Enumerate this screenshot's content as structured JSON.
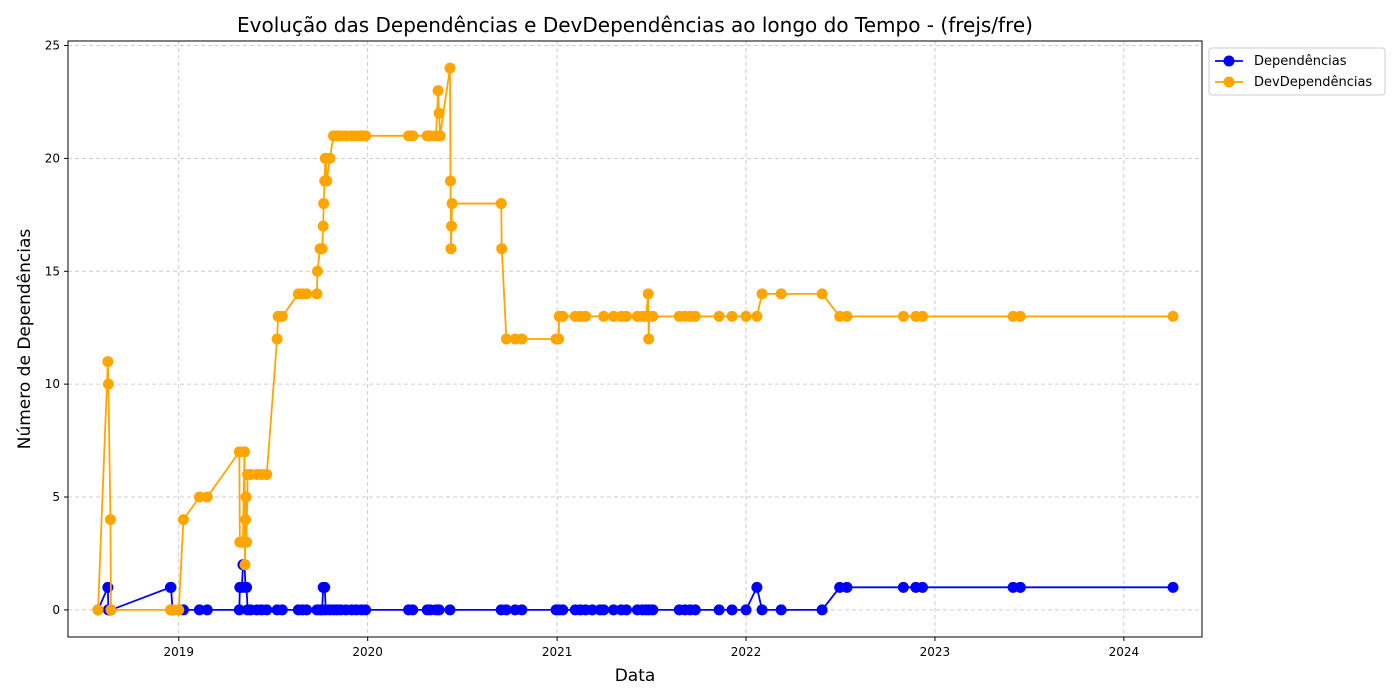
{
  "chart_data": {
    "type": "line",
    "title": "Evolução das Dependências e DevDependências ao longo do Tempo - (frejs/fre)",
    "xlabel": "Data",
    "ylabel": "Número de Dependências",
    "x_ticks": [
      "2019",
      "2020",
      "2021",
      "2022",
      "2023",
      "2024"
    ],
    "y_ticks": [
      "0",
      "5",
      "10",
      "15",
      "20",
      "25"
    ],
    "xlim": [
      "2018-06-01",
      "2024-05-31"
    ],
    "ylim": [
      -1.2,
      25.2
    ],
    "grid": true,
    "legend_position": "outside-top-right",
    "series": [
      {
        "name": "Dependências",
        "color": "#0000ff",
        "points": [
          [
            "2018-07-29",
            0
          ],
          [
            "2018-08-17",
            1
          ],
          [
            "2018-08-18",
            0
          ],
          [
            "2018-08-22",
            0
          ],
          [
            "2018-08-23",
            0
          ],
          [
            "2018-12-16",
            1
          ],
          [
            "2018-12-17",
            1
          ],
          [
            "2018-12-20",
            0
          ],
          [
            "2019-01-01",
            0
          ],
          [
            "2019-01-10",
            0
          ],
          [
            "2019-02-10",
            0
          ],
          [
            "2019-02-25",
            0
          ],
          [
            "2019-04-28",
            0
          ],
          [
            "2019-04-29",
            1
          ],
          [
            "2019-05-03",
            1
          ],
          [
            "2019-05-05",
            2
          ],
          [
            "2019-05-08",
            2
          ],
          [
            "2019-05-10",
            1
          ],
          [
            "2019-05-12",
            1
          ],
          [
            "2019-05-14",
            0
          ],
          [
            "2019-05-20",
            0
          ],
          [
            "2019-06-01",
            0
          ],
          [
            "2019-06-10",
            0
          ],
          [
            "2019-06-20",
            0
          ],
          [
            "2019-07-10",
            0
          ],
          [
            "2019-07-20",
            0
          ],
          [
            "2019-08-20",
            0
          ],
          [
            "2019-08-28",
            0
          ],
          [
            "2019-09-05",
            0
          ],
          [
            "2019-09-25",
            0
          ],
          [
            "2019-10-01",
            0
          ],
          [
            "2019-10-05",
            0
          ],
          [
            "2019-10-07",
            1
          ],
          [
            "2019-10-10",
            1
          ],
          [
            "2019-10-12",
            0
          ],
          [
            "2019-10-20",
            0
          ],
          [
            "2019-10-27",
            0
          ],
          [
            "2019-11-03",
            0
          ],
          [
            "2019-11-10",
            0
          ],
          [
            "2019-11-20",
            0
          ],
          [
            "2019-12-01",
            0
          ],
          [
            "2019-12-10",
            0
          ],
          [
            "2019-12-20",
            0
          ],
          [
            "2019-12-28",
            0
          ],
          [
            "2020-03-20",
            0
          ],
          [
            "2020-03-28",
            0
          ],
          [
            "2020-04-25",
            0
          ],
          [
            "2020-05-01",
            0
          ],
          [
            "2020-05-12",
            0
          ],
          [
            "2020-05-18",
            0
          ],
          [
            "2020-06-08",
            0
          ],
          [
            "2020-09-15",
            0
          ],
          [
            "2020-09-25",
            0
          ],
          [
            "2020-10-12",
            0
          ],
          [
            "2020-10-25",
            0
          ],
          [
            "2020-12-30",
            0
          ],
          [
            "2021-01-05",
            0
          ],
          [
            "2021-01-12",
            0
          ],
          [
            "2021-02-05",
            0
          ],
          [
            "2021-02-15",
            0
          ],
          [
            "2021-02-25",
            0
          ],
          [
            "2021-03-10",
            0
          ],
          [
            "2021-03-25",
            0
          ],
          [
            "2021-04-01",
            0
          ],
          [
            "2021-04-20",
            0
          ],
          [
            "2021-05-05",
            0
          ],
          [
            "2021-05-15",
            0
          ],
          [
            "2021-06-05",
            0
          ],
          [
            "2021-06-15",
            0
          ],
          [
            "2021-06-22",
            0
          ],
          [
            "2021-06-28",
            0
          ],
          [
            "2021-07-05",
            0
          ],
          [
            "2021-08-25",
            0
          ],
          [
            "2021-09-05",
            0
          ],
          [
            "2021-09-15",
            0
          ],
          [
            "2021-09-25",
            0
          ],
          [
            "2021-11-10",
            0
          ],
          [
            "2021-12-05",
            0
          ],
          [
            "2022-01-01",
            0
          ],
          [
            "2022-01-22",
            1
          ],
          [
            "2022-02-01",
            0
          ],
          [
            "2022-03-10",
            0
          ],
          [
            "2022-05-28",
            0
          ],
          [
            "2022-07-01",
            1
          ],
          [
            "2022-07-15",
            1
          ],
          [
            "2022-11-01",
            1
          ],
          [
            "2022-11-25",
            1
          ],
          [
            "2022-12-08",
            1
          ],
          [
            "2023-06-01",
            1
          ],
          [
            "2023-06-15",
            1
          ],
          [
            "2024-04-05",
            1
          ]
        ]
      },
      {
        "name": "DevDependências",
        "color": "#ffa500",
        "points": [
          [
            "2018-07-29",
            0
          ],
          [
            "2018-08-17",
            11
          ],
          [
            "2018-08-18",
            10
          ],
          [
            "2018-08-22",
            4
          ],
          [
            "2018-08-23",
            0
          ],
          [
            "2018-12-16",
            0
          ],
          [
            "2018-12-17",
            0
          ],
          [
            "2018-12-20",
            0
          ],
          [
            "2019-01-01",
            0
          ],
          [
            "2019-01-10",
            4
          ],
          [
            "2019-02-10",
            5
          ],
          [
            "2019-02-25",
            5
          ],
          [
            "2019-04-28",
            7
          ],
          [
            "2019-04-29",
            3
          ],
          [
            "2019-05-03",
            3
          ],
          [
            "2019-05-05",
            3
          ],
          [
            "2019-05-08",
            7
          ],
          [
            "2019-05-09",
            2
          ],
          [
            "2019-05-10",
            4
          ],
          [
            "2019-05-11",
            5
          ],
          [
            "2019-05-12",
            3
          ],
          [
            "2019-05-14",
            6
          ],
          [
            "2019-05-20",
            6
          ],
          [
            "2019-06-01",
            6
          ],
          [
            "2019-06-10",
            6
          ],
          [
            "2019-06-20",
            6
          ],
          [
            "2019-07-10",
            12
          ],
          [
            "2019-07-12",
            13
          ],
          [
            "2019-07-20",
            13
          ],
          [
            "2019-08-20",
            14
          ],
          [
            "2019-08-28",
            14
          ],
          [
            "2019-09-05",
            14
          ],
          [
            "2019-09-25",
            14
          ],
          [
            "2019-09-26",
            15
          ],
          [
            "2019-10-01",
            16
          ],
          [
            "2019-10-05",
            16
          ],
          [
            "2019-10-07",
            17
          ],
          [
            "2019-10-08",
            18
          ],
          [
            "2019-10-10",
            19
          ],
          [
            "2019-10-11",
            20
          ],
          [
            "2019-10-12",
            20
          ],
          [
            "2019-10-14",
            19
          ],
          [
            "2019-10-20",
            20
          ],
          [
            "2019-10-27",
            21
          ],
          [
            "2019-11-03",
            21
          ],
          [
            "2019-11-10",
            21
          ],
          [
            "2019-11-20",
            21
          ],
          [
            "2019-12-01",
            21
          ],
          [
            "2019-12-10",
            21
          ],
          [
            "2019-12-20",
            21
          ],
          [
            "2019-12-28",
            21
          ],
          [
            "2020-03-20",
            21
          ],
          [
            "2020-03-28",
            21
          ],
          [
            "2020-04-25",
            21
          ],
          [
            "2020-05-01",
            21
          ],
          [
            "2020-05-12",
            21
          ],
          [
            "2020-05-16",
            23
          ],
          [
            "2020-05-18",
            22
          ],
          [
            "2020-05-20",
            21
          ],
          [
            "2020-06-08",
            24
          ],
          [
            "2020-06-09",
            19
          ],
          [
            "2020-06-10",
            16
          ],
          [
            "2020-06-11",
            17
          ],
          [
            "2020-06-12",
            18
          ],
          [
            "2020-09-15",
            18
          ],
          [
            "2020-09-16",
            16
          ],
          [
            "2020-09-25",
            12
          ],
          [
            "2020-10-12",
            12
          ],
          [
            "2020-10-25",
            12
          ],
          [
            "2020-12-30",
            12
          ],
          [
            "2021-01-04",
            12
          ],
          [
            "2021-01-05",
            13
          ],
          [
            "2021-01-12",
            13
          ],
          [
            "2021-02-05",
            13
          ],
          [
            "2021-02-15",
            13
          ],
          [
            "2021-02-25",
            13
          ],
          [
            "2021-04-01",
            13
          ],
          [
            "2021-04-20",
            13
          ],
          [
            "2021-05-05",
            13
          ],
          [
            "2021-05-15",
            13
          ],
          [
            "2021-06-05",
            13
          ],
          [
            "2021-06-15",
            13
          ],
          [
            "2021-06-22",
            13
          ],
          [
            "2021-06-26",
            14
          ],
          [
            "2021-06-27",
            12
          ],
          [
            "2021-06-28",
            13
          ],
          [
            "2021-07-05",
            13
          ],
          [
            "2021-08-25",
            13
          ],
          [
            "2021-09-05",
            13
          ],
          [
            "2021-09-15",
            13
          ],
          [
            "2021-09-25",
            13
          ],
          [
            "2021-11-10",
            13
          ],
          [
            "2021-12-05",
            13
          ],
          [
            "2022-01-01",
            13
          ],
          [
            "2022-01-22",
            13
          ],
          [
            "2022-02-01",
            14
          ],
          [
            "2022-03-10",
            14
          ],
          [
            "2022-05-28",
            14
          ],
          [
            "2022-07-01",
            13
          ],
          [
            "2022-07-15",
            13
          ],
          [
            "2022-11-01",
            13
          ],
          [
            "2022-11-25",
            13
          ],
          [
            "2022-12-08",
            13
          ],
          [
            "2023-06-01",
            13
          ],
          [
            "2023-06-15",
            13
          ],
          [
            "2024-04-05",
            13
          ]
        ]
      }
    ]
  }
}
